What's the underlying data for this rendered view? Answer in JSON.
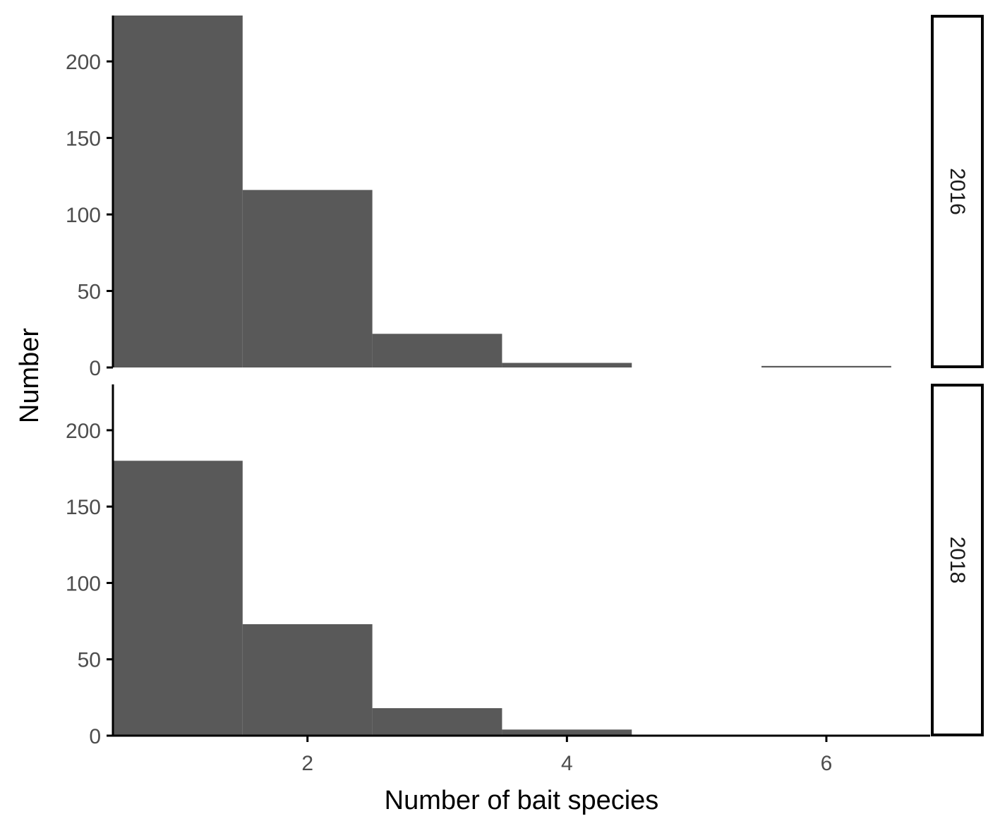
{
  "chart_data": {
    "type": "bar",
    "subtype": "histogram-faceted",
    "xlabel": "Number of bait species",
    "ylabel": "Number",
    "xlim": [
      0.5,
      6.8
    ],
    "ylim": [
      0,
      230
    ],
    "x_ticks": [
      2,
      4,
      6
    ],
    "y_ticks": [
      0,
      50,
      100,
      150,
      200
    ],
    "bar_color": "#595959",
    "grid": false,
    "facets": [
      {
        "name": "2016",
        "bins": [
          {
            "x_start": 0.5,
            "x_end": 1.5,
            "count": 235
          },
          {
            "x_start": 1.5,
            "x_end": 2.5,
            "count": 116
          },
          {
            "x_start": 2.5,
            "x_end": 3.5,
            "count": 22
          },
          {
            "x_start": 3.5,
            "x_end": 4.5,
            "count": 3
          },
          {
            "x_start": 4.5,
            "x_end": 5.5,
            "count": 0
          },
          {
            "x_start": 5.5,
            "x_end": 6.5,
            "count": 1
          }
        ]
      },
      {
        "name": "2018",
        "bins": [
          {
            "x_start": 0.5,
            "x_end": 1.5,
            "count": 180
          },
          {
            "x_start": 1.5,
            "x_end": 2.5,
            "count": 73
          },
          {
            "x_start": 2.5,
            "x_end": 3.5,
            "count": 18
          },
          {
            "x_start": 3.5,
            "x_end": 4.5,
            "count": 4
          },
          {
            "x_start": 4.5,
            "x_end": 5.5,
            "count": 0
          },
          {
            "x_start": 5.5,
            "x_end": 6.5,
            "count": 0
          }
        ]
      }
    ]
  }
}
